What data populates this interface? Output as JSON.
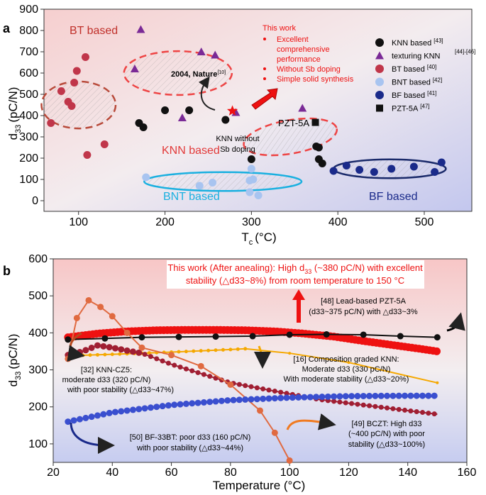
{
  "chart_data": [
    {
      "type": "scatter",
      "panel_label": "a",
      "xlabel": "T",
      "xlabel_sub": "c",
      "xlabel_unit": "(°C)",
      "ylabel": "d",
      "ylabel_sub": "33",
      "ylabel_unit": "(pC/N)",
      "xlim": [
        60,
        555
      ],
      "ylim": [
        -50,
        900
      ],
      "xticks": [
        100,
        200,
        300,
        400,
        500
      ],
      "yticks": [
        0,
        100,
        200,
        300,
        400,
        500,
        600,
        700,
        800,
        900
      ],
      "series": [
        {
          "name": "KNN based",
          "ref": "[43]",
          "marker": "circle",
          "color": "#111111",
          "points": [
            [
              170,
              365
            ],
            [
              175,
              345
            ],
            [
              200,
              425
            ],
            [
              228,
              425
            ],
            [
              270,
              380
            ],
            [
              300,
              195
            ],
            [
              375,
              255
            ],
            [
              378,
              250
            ],
            [
              378,
              195
            ],
            [
              382,
              175
            ]
          ]
        },
        {
          "name": "texturing KNN",
          "ref": "[44]-[46]",
          "marker": "triangle",
          "color": "#7a2a96",
          "points": [
            [
              172,
              805
            ],
            [
              165,
              620
            ],
            [
              220,
              390
            ],
            [
              242,
              700
            ],
            [
              258,
              685
            ],
            [
              282,
              415
            ],
            [
              359,
              435
            ]
          ]
        },
        {
          "name": "BT based",
          "ref": "[40]",
          "marker": "circle",
          "color": "#c0364a",
          "points": [
            [
              68,
              365
            ],
            [
              80,
              515
            ],
            [
              88,
              465
            ],
            [
              92,
              445
            ],
            [
              95,
              555
            ],
            [
              98,
              610
            ],
            [
              108,
              675
            ],
            [
              110,
              215
            ],
            [
              130,
              265
            ]
          ]
        },
        {
          "name": "BNT based",
          "ref": "[42]",
          "marker": "circle",
          "color": "#a8c4f0",
          "points": [
            [
              178,
              110
            ],
            [
              240,
              70
            ],
            [
              255,
              85
            ],
            [
              300,
              150
            ],
            [
              298,
              95
            ],
            [
              302,
              100
            ],
            [
              298,
              40
            ],
            [
              308,
              25
            ]
          ]
        },
        {
          "name": "BF based",
          "ref": "[41]",
          "marker": "circle",
          "color": "#1a2a8a",
          "points": [
            [
              395,
              140
            ],
            [
              410,
              165
            ],
            [
              425,
              145
            ],
            [
              442,
              135
            ],
            [
              462,
              150
            ],
            [
              488,
              160
            ],
            [
              512,
              135
            ],
            [
              520,
              180
            ]
          ]
        },
        {
          "name": "PZT-5A",
          "ref": "[47]",
          "marker": "square",
          "color": "#111111",
          "points": [
            [
              374,
              368
            ]
          ]
        }
      ],
      "this_work_point": [
        278,
        422
      ],
      "annotations": {
        "bt_based": "BT based",
        "knn_based": "KNN based",
        "bnt_based": "BNT based",
        "bf_based": "BF based",
        "pzt5a": "PZT-5A",
        "nature": "2004, Nature",
        "nature_ref": "[10]",
        "knn_without_1": "KNN without",
        "knn_without_2": "Sb doping",
        "this_work_title": "This work",
        "this_work_items": [
          "Excellent",
          "comprehensive",
          "performance",
          "Without Sb doping",
          "Simple solid synthesis"
        ]
      }
    },
    {
      "type": "line",
      "panel_label": "b",
      "xlabel": "Temperature (°C)",
      "ylabel": "d",
      "ylabel_sub": "33",
      "ylabel_unit": "(pC/N)",
      "xlim": [
        20,
        160
      ],
      "ylim": [
        50,
        600
      ],
      "xticks": [
        20,
        40,
        60,
        80,
        100,
        120,
        140,
        160
      ],
      "yticks": [
        100,
        200,
        300,
        400,
        500,
        600
      ],
      "series": [
        {
          "ref": "This work",
          "color": "#ee1111",
          "x": [
            25,
            35,
            45,
            55,
            65,
            75,
            85,
            95,
            105,
            115,
            125,
            135,
            145,
            150
          ],
          "y": [
            388,
            398,
            404,
            407,
            408,
            408,
            407,
            404,
            398,
            390,
            378,
            367,
            356,
            350
          ]
        },
        {
          "ref": "PZT-5A",
          "color": "#111111",
          "x": [
            25,
            37.5,
            50,
            62.5,
            75,
            87.5,
            100,
            112.5,
            125,
            137.5,
            150
          ],
          "y": [
            382,
            385,
            388,
            389,
            390,
            391,
            395,
            396,
            395,
            391,
            388
          ]
        },
        {
          "ref": "Composition graded KNN",
          "color": "#f5a800",
          "x": [
            25,
            40,
            60,
            80,
            85,
            100,
            120,
            150
          ],
          "y": [
            338,
            342,
            348,
            355,
            357,
            345,
            320,
            265
          ]
        },
        {
          "ref": "KNN-CZ5",
          "color": "#a01e32",
          "x": [
            25,
            30,
            35,
            40,
            45,
            50,
            60,
            70,
            80,
            90,
            100,
            110,
            120,
            130,
            140,
            150
          ],
          "y": [
            340,
            350,
            366,
            360,
            352,
            345,
            315,
            290,
            265,
            250,
            235,
            220,
            210,
            200,
            190,
            180
          ]
        },
        {
          "ref": "BCZT",
          "color": "#e06a40",
          "x": [
            25,
            28,
            32,
            36,
            40,
            45,
            50,
            60,
            70,
            80,
            90,
            95,
            100
          ],
          "y": [
            330,
            440,
            488,
            470,
            445,
            400,
            360,
            340,
            310,
            260,
            190,
            130,
            55
          ]
        },
        {
          "ref": "BF-33BT",
          "color": "#3a4fcf",
          "x": [
            25,
            40,
            60,
            80,
            100,
            120,
            140,
            150
          ],
          "y": [
            160,
            185,
            205,
            218,
            225,
            229,
            230,
            230
          ]
        }
      ],
      "annotations": {
        "main_1a": "This work (After anealing): High d",
        "main_1b": "33",
        "main_1c": " (~380 pC/N) with excellent",
        "main_2": "stability (△d33~8%) from room temperature to 150 °C",
        "pzt_1": "[48] Lead-based PZT-5A",
        "pzt_2": "(d33~375 pC/N) with △d33~3%",
        "knncz_1": "[32] KNN-CZ5:",
        "knncz_2": "moderate d33 (320 pC/N)",
        "knncz_3": "with poor stability (△d33~47%)",
        "grad_1": "[16] Composition graded KNN:",
        "grad_2": "Moderate d33 (330 pC/N)",
        "grad_3": "With moderate stability (△d33~20%)",
        "bczt_1": "[49] BCZT:  High d33",
        "bczt_2": "(~400 pC/N) with poor",
        "bczt_3": "stability (△d33~100%)",
        "bf_1": "[50] BF-33BT: poor d33 (160 pC/N)",
        "bf_2": "with poor stability (△d33~44%)"
      }
    }
  ]
}
